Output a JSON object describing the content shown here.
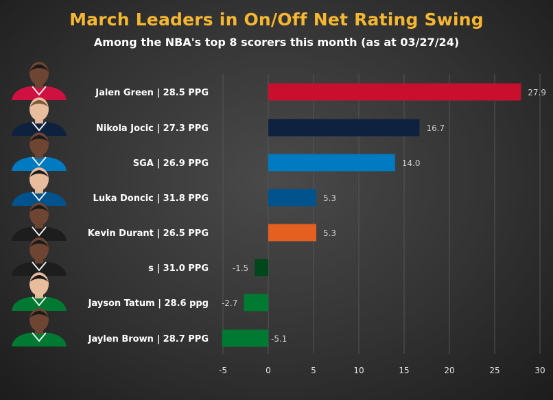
{
  "chart_data": {
    "type": "bar",
    "orientation": "horizontal",
    "title": "March Leaders in On/Off Net Rating Swing",
    "subtitle": "Among the NBA's top 8 scorers this month (as at 03/27/24)",
    "categories": [
      "Jalen Green | 28.5 PPG",
      "Nikola Jocic | 27.3  PPG",
      "SGA | 26.9 PPG",
      "Luka Doncic | 31.8 PPG",
      "Kevin Durant | 26.5 PPG",
      "s | 31.0 PPG",
      "Jayson Tatum | 28.6 ppg",
      "Jaylen Brown | 28.7 PPG"
    ],
    "values": [
      27.9,
      16.7,
      14.0,
      5.3,
      5.3,
      -1.5,
      -2.7,
      -5.1
    ],
    "value_labels": [
      "27.9",
      "16.7",
      "14.0",
      "5.3",
      "5.3",
      "-1.5",
      "-2.7",
      "-5.1"
    ],
    "colors": [
      "#c8102e",
      "#0e2240",
      "#007ac1",
      "#00538c",
      "#e56020",
      "#00471b",
      "#007a33",
      "#007a33"
    ],
    "xlim": [
      -5,
      30
    ],
    "xticks": [
      "-5",
      "0",
      "5",
      "10",
      "15",
      "20",
      "25",
      "30"
    ],
    "grid": true,
    "headshot_icons": [
      "player-headshot-jalen-green",
      "player-headshot-nikola-jokic",
      "player-headshot-sga",
      "player-headshot-luka-doncic",
      "player-headshot-kevin-durant",
      "player-headshot-giannis",
      "player-headshot-jayson-tatum",
      "player-headshot-jaylen-brown"
    ],
    "jersey_colors": [
      "#ce1141",
      "#0e2240",
      "#007ac1",
      "#00538c",
      "#1d1d1d",
      "#1d1d1d",
      "#007a33",
      "#007a33"
    ]
  }
}
